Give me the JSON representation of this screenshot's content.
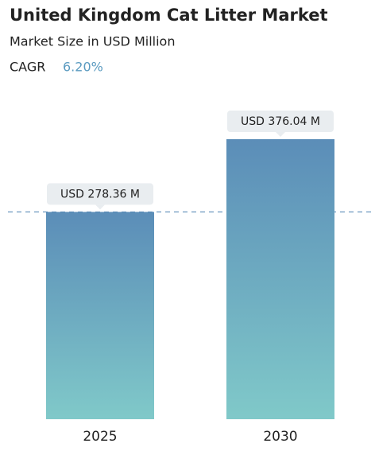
{
  "chart_data": {
    "type": "bar",
    "title": "United Kingdom Cat Litter Market",
    "subtitle": "Market Size in USD Million",
    "cagr_label": "CAGR",
    "cagr_value": "6.20%",
    "categories": [
      "2025",
      "2030"
    ],
    "values": [
      278.36,
      376.04
    ],
    "value_labels": [
      "USD 278.36 M",
      "USD 376.04 M"
    ],
    "gradient": [
      "#5b8db8",
      "#80c9c9"
    ]
  }
}
